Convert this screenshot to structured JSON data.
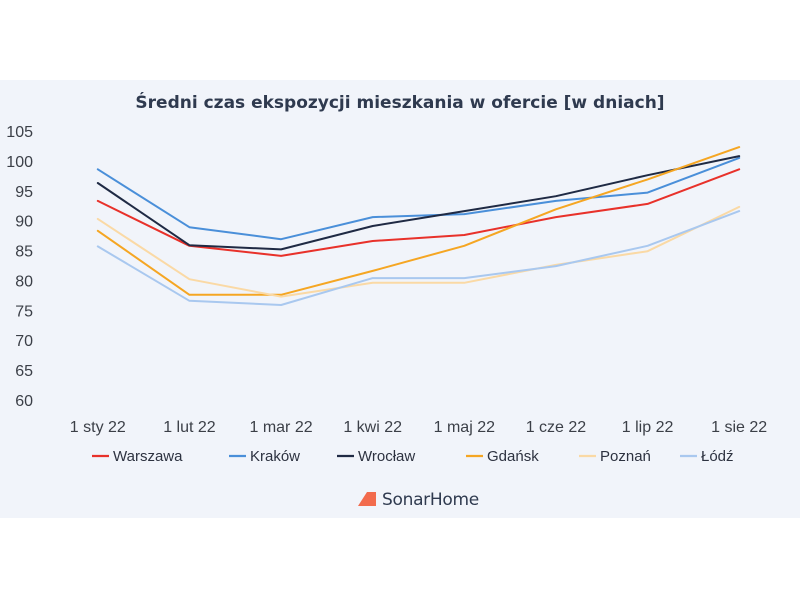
{
  "chart_data": {
    "type": "line",
    "title": "Średni czas ekspozycji mieszkania w ofercie [w dniach]",
    "xlabel": "",
    "ylabel": "",
    "ylim": [
      60,
      105
    ],
    "yticks": [
      60,
      65,
      70,
      75,
      80,
      85,
      90,
      95,
      100,
      105
    ],
    "grid": false,
    "legend_position": "bottom",
    "categories": [
      "1 sty 22",
      "1 lut 22",
      "1 mar 22",
      "1 kwi 22",
      "1 maj 22",
      "1 cze 22",
      "1 lip 22",
      "1 sie 22"
    ],
    "series": [
      {
        "name": "Warszawa",
        "color": "#e8312a",
        "values": [
          93.3,
          85.8,
          84.1,
          86.6,
          87.6,
          90.6,
          92.8,
          98.6
        ]
      },
      {
        "name": "Kraków",
        "color": "#4a8fd9",
        "values": [
          98.6,
          88.9,
          86.9,
          90.6,
          91.1,
          93.3,
          94.7,
          100.5
        ]
      },
      {
        "name": "Wrocław",
        "color": "#1f2a44",
        "values": [
          96.3,
          85.9,
          85.2,
          89.1,
          91.6,
          94.1,
          97.6,
          100.8
        ]
      },
      {
        "name": "Gdańsk",
        "color": "#f5a623",
        "values": [
          88.3,
          77.6,
          77.6,
          81.6,
          85.8,
          91.9,
          96.9,
          102.3
        ]
      },
      {
        "name": "Poznań",
        "color": "#fad9a5",
        "values": [
          90.3,
          80.2,
          77.3,
          79.6,
          79.6,
          82.6,
          84.9,
          92.3
        ]
      },
      {
        "name": "Łódź",
        "color": "#a9c8ef",
        "values": [
          85.7,
          76.6,
          75.9,
          80.4,
          80.4,
          82.4,
          85.8,
          91.6
        ]
      }
    ]
  },
  "branding": {
    "logo_text": "SonarHome",
    "logo_color": "#f26b4d"
  }
}
